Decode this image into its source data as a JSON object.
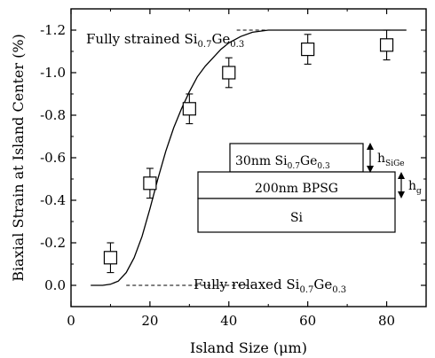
{
  "chart_data": {
    "type": "scatter",
    "xlabel": "Island Size (μm)",
    "ylabel": "Biaxial Strain at Island Center (%)",
    "xlim": [
      0,
      90
    ],
    "ylim": [
      0.1,
      -1.3
    ],
    "x_ticks": [
      {
        "value": 0,
        "label": "0"
      },
      {
        "value": 20,
        "label": "20"
      },
      {
        "value": 40,
        "label": "40"
      },
      {
        "value": 60,
        "label": "60"
      },
      {
        "value": 80,
        "label": "80"
      }
    ],
    "y_ticks": [
      {
        "value": 0.0,
        "label": "0.0"
      },
      {
        "value": -0.2,
        "label": "-0.2"
      },
      {
        "value": -0.4,
        "label": "-0.4"
      },
      {
        "value": -0.6,
        "label": "-0.6"
      },
      {
        "value": -0.8,
        "label": "-0.8"
      },
      {
        "value": -1.0,
        "label": "-1.0"
      },
      {
        "value": -1.2,
        "label": "-1.2"
      }
    ],
    "points": [
      {
        "x": 10,
        "y": -0.13,
        "err": 0.07
      },
      {
        "x": 20,
        "y": -0.48,
        "err": 0.07
      },
      {
        "x": 30,
        "y": -0.83,
        "err": 0.07
      },
      {
        "x": 40,
        "y": -1.0,
        "err": 0.07
      },
      {
        "x": 60,
        "y": -1.11,
        "err": 0.07
      },
      {
        "x": 80,
        "y": -1.13,
        "err": 0.07
      }
    ],
    "fit_curve": {
      "x": [
        5,
        8,
        10,
        12,
        14,
        16,
        18,
        20,
        22,
        24,
        26,
        28,
        30,
        32,
        34,
        36,
        38,
        40,
        43,
        46,
        50,
        55,
        60,
        65,
        70,
        75,
        80,
        85
      ],
      "y": [
        0.0,
        0.0,
        -0.005,
        -0.02,
        -0.06,
        -0.13,
        -0.23,
        -0.36,
        -0.5,
        -0.63,
        -0.74,
        -0.83,
        -0.91,
        -0.98,
        -1.03,
        -1.07,
        -1.11,
        -1.14,
        -1.17,
        -1.19,
        -1.2,
        -1.2,
        -1.2,
        -1.2,
        -1.2,
        -1.2,
        -1.2,
        -1.2
      ]
    },
    "reference_lines": [
      {
        "y": -1.2,
        "x_start": 42,
        "x_end": 84,
        "style": "dashed"
      },
      {
        "y": 0.0,
        "x_start": 14,
        "x_end": 46,
        "style": "dashed"
      }
    ],
    "annotations": {
      "strained": {
        "prefix": "Fully strained Si",
        "sub1": "0.7",
        "mid": "Ge",
        "sub2": "0.3"
      },
      "relaxed": {
        "prefix": "Fully relaxed Si",
        "sub1": "0.7",
        "mid": "Ge",
        "sub2": "0.3"
      }
    },
    "inset": {
      "top_layer": {
        "prefix": "30nm Si",
        "sub1": "0.7",
        "mid": "Ge",
        "sub2": "0.3"
      },
      "middle_layer": "200nm BPSG",
      "bottom_layer": "Si",
      "label_top": {
        "main": "h",
        "sub": "SiGe"
      },
      "label_middle": {
        "main": "h",
        "sub": "g"
      }
    },
    "grid": false
  }
}
